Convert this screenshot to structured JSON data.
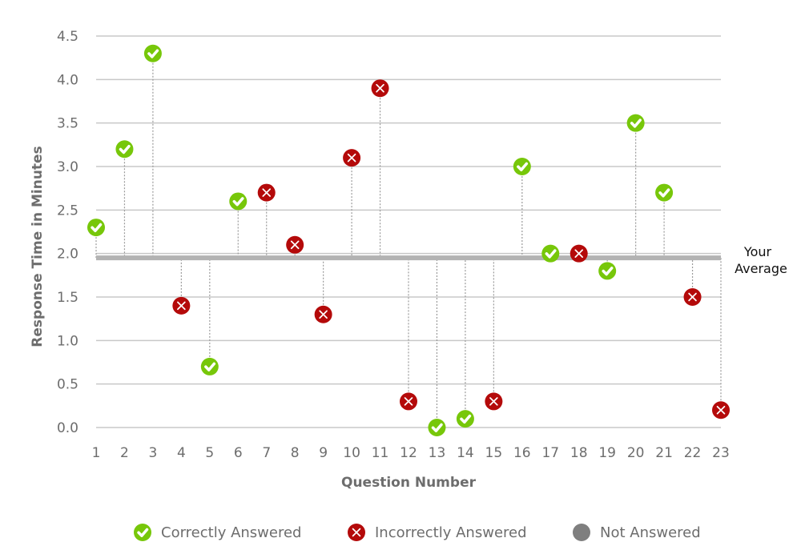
{
  "chart_data": {
    "type": "scatter",
    "title": "",
    "xlabel": "Question Number",
    "ylabel": "Response Time in Minutes",
    "ylim": [
      0,
      4.5
    ],
    "yticks": [
      "0.0",
      "0.5",
      "1.0",
      "1.5",
      "2.0",
      "2.5",
      "3.0",
      "3.5",
      "4.0",
      "4.5"
    ],
    "x": [
      1,
      2,
      3,
      4,
      5,
      6,
      7,
      8,
      9,
      10,
      11,
      12,
      13,
      14,
      15,
      16,
      17,
      18,
      19,
      20,
      21,
      22,
      23
    ],
    "values": [
      2.3,
      3.2,
      4.3,
      1.4,
      0.7,
      2.6,
      2.7,
      2.1,
      1.3,
      3.1,
      3.9,
      0.3,
      0.0,
      0.1,
      0.3,
      3.0,
      2.0,
      2.0,
      1.8,
      3.5,
      2.7,
      1.5,
      0.2
    ],
    "status": [
      "correct",
      "correct",
      "correct",
      "incorrect",
      "correct",
      "correct",
      "incorrect",
      "incorrect",
      "incorrect",
      "incorrect",
      "incorrect",
      "incorrect",
      "correct",
      "correct",
      "incorrect",
      "correct",
      "correct",
      "incorrect",
      "correct",
      "correct",
      "correct",
      "incorrect",
      "incorrect"
    ],
    "average": 1.95,
    "average_label": [
      "Your",
      "Average"
    ],
    "grid": true,
    "legend_position": "bottom",
    "legend": [
      {
        "key": "correct",
        "label": "Correctly Answered"
      },
      {
        "key": "incorrect",
        "label": "Incorrectly Answered"
      },
      {
        "key": "unanswered",
        "label": "Not Answered"
      }
    ],
    "colors": {
      "correct": "#77c70a",
      "incorrect": "#b40a0a",
      "unanswered": "#7f7f7f",
      "average": "#b3b3b3",
      "grid": "#c8c8c8"
    }
  }
}
